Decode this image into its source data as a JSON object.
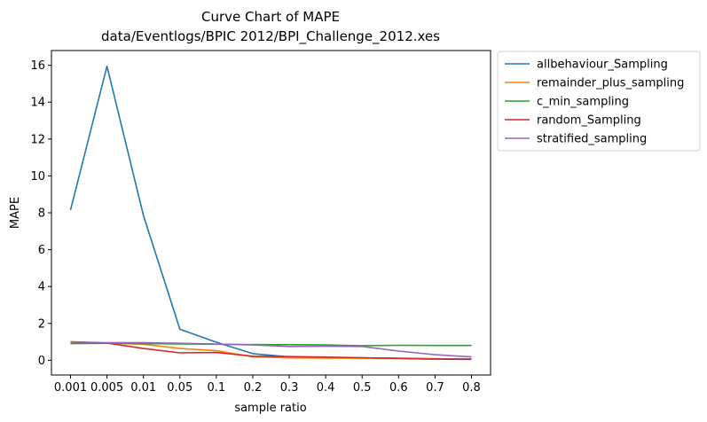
{
  "chart_data": {
    "type": "line",
    "title": "Curve Chart of MAPE",
    "subtitle": "data/Eventlogs/BPIC 2012/BPI_Challenge_2012.xes",
    "xlabel": "sample ratio",
    "ylabel": "MAPE",
    "categories": [
      "0.001",
      "0.005",
      "0.01",
      "0.05",
      "0.1",
      "0.2",
      "0.3",
      "0.4",
      "0.5",
      "0.6",
      "0.7",
      "0.8"
    ],
    "ylim": [
      -0.8,
      16.8
    ],
    "yticks": [
      "0",
      "2",
      "4",
      "6",
      "8",
      "10",
      "12",
      "14",
      "16"
    ],
    "grid": false,
    "legend_position": "outside-top-right",
    "series": [
      {
        "name": "allbehaviour_Sampling",
        "color": "#1f77b4",
        "values": [
          8.15,
          15.95,
          7.85,
          1.68,
          0.98,
          0.36,
          0.18,
          0.15,
          0.13,
          0.11,
          0.08,
          0.07
        ]
      },
      {
        "name": "remainder_plus_sampling",
        "color": "#ff7f0e",
        "values": [
          0.95,
          0.93,
          0.87,
          0.64,
          0.52,
          0.19,
          0.13,
          0.12,
          0.11,
          0.1,
          0.06,
          0.05
        ]
      },
      {
        "name": "c_min_sampling",
        "color": "#2ca02c",
        "values": [
          0.9,
          0.92,
          0.9,
          0.89,
          0.87,
          0.85,
          0.85,
          0.83,
          0.79,
          0.81,
          0.8,
          0.8
        ]
      },
      {
        "name": "random_Sampling",
        "color": "#d62728",
        "values": [
          1.0,
          0.93,
          0.64,
          0.4,
          0.42,
          0.22,
          0.2,
          0.17,
          0.14,
          0.1,
          0.06,
          0.05
        ]
      },
      {
        "name": "stratified_sampling",
        "color": "#9467bd",
        "values": [
          1.0,
          0.95,
          0.95,
          0.92,
          0.88,
          0.83,
          0.75,
          0.76,
          0.75,
          0.5,
          0.3,
          0.18
        ]
      }
    ]
  }
}
